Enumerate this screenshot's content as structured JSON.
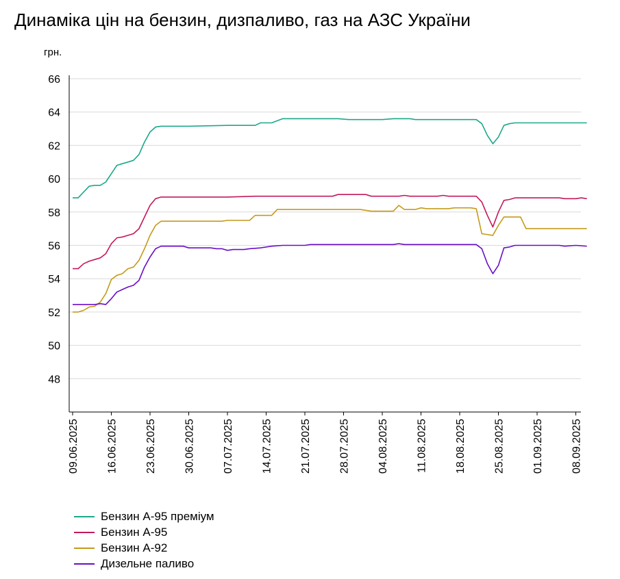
{
  "title": "Динаміка цін на бензин, дизпаливо, газ на АЗС України",
  "chart_data": {
    "type": "line",
    "title": "Динаміка цін на бензин, дизпаливо, газ на АЗС України",
    "ylabel": "грн.",
    "xlabel": "",
    "ylim": [
      46,
      66
    ],
    "yticks": [
      "48",
      "50",
      "52",
      "54",
      "56",
      "58",
      "60",
      "62",
      "64",
      "66"
    ],
    "x_start": "2025-06-09",
    "x_end": "2025-09-10",
    "xticks": [
      "09.06.2025",
      "16.06.2025",
      "23.06.2025",
      "30.06.2025",
      "07.07.2025",
      "14.07.2025",
      "21.07.2025",
      "28.07.2025",
      "04.08.2025",
      "11.08.2025",
      "18.08.2025",
      "25.08.2025",
      "01.09.2025",
      "08.09.2025"
    ],
    "grid": "horizontal",
    "legend_position": "bottom-left",
    "series": [
      {
        "name": "Бензин А-95 преміум",
        "color": "#1aa88a",
        "points": [
          [
            "09.06.2025",
            58.85
          ],
          [
            "10.06.2025",
            58.85
          ],
          [
            "11.06.2025",
            59.2
          ],
          [
            "12.06.2025",
            59.55
          ],
          [
            "13.06.2025",
            59.6
          ],
          [
            "14.06.2025",
            59.6
          ],
          [
            "15.06.2025",
            59.8
          ],
          [
            "16.06.2025",
            60.3
          ],
          [
            "17.06.2025",
            60.8
          ],
          [
            "18.06.2025",
            60.9
          ],
          [
            "19.06.2025",
            61.0
          ],
          [
            "20.06.2025",
            61.1
          ],
          [
            "21.06.2025",
            61.45
          ],
          [
            "22.06.2025",
            62.2
          ],
          [
            "23.06.2025",
            62.8
          ],
          [
            "24.06.2025",
            63.1
          ],
          [
            "25.06.2025",
            63.15
          ],
          [
            "30.06.2025",
            63.15
          ],
          [
            "07.07.2025",
            63.2
          ],
          [
            "12.07.2025",
            63.2
          ],
          [
            "13.07.2025",
            63.35
          ],
          [
            "15.07.2025",
            63.35
          ],
          [
            "17.07.2025",
            63.6
          ],
          [
            "27.07.2025",
            63.6
          ],
          [
            "29.07.2025",
            63.55
          ],
          [
            "04.08.2025",
            63.55
          ],
          [
            "06.08.2025",
            63.6
          ],
          [
            "09.08.2025",
            63.6
          ],
          [
            "10.08.2025",
            63.55
          ],
          [
            "21.08.2025",
            63.55
          ],
          [
            "22.08.2025",
            63.3
          ],
          [
            "23.08.2025",
            62.6
          ],
          [
            "24.08.2025",
            62.1
          ],
          [
            "25.08.2025",
            62.5
          ],
          [
            "26.08.2025",
            63.2
          ],
          [
            "27.08.2025",
            63.3
          ],
          [
            "28.08.2025",
            63.35
          ],
          [
            "10.09.2025",
            63.35
          ]
        ]
      },
      {
        "name": "Бензин А-95",
        "color": "#c2185b",
        "points": [
          [
            "09.06.2025",
            54.6
          ],
          [
            "10.06.2025",
            54.6
          ],
          [
            "11.06.2025",
            54.9
          ],
          [
            "12.06.2025",
            55.05
          ],
          [
            "13.06.2025",
            55.15
          ],
          [
            "14.06.2025",
            55.25
          ],
          [
            "15.06.2025",
            55.5
          ],
          [
            "16.06.2025",
            56.1
          ],
          [
            "17.06.2025",
            56.45
          ],
          [
            "18.06.2025",
            56.5
          ],
          [
            "19.06.2025",
            56.6
          ],
          [
            "20.06.2025",
            56.7
          ],
          [
            "21.06.2025",
            57.0
          ],
          [
            "22.06.2025",
            57.7
          ],
          [
            "23.06.2025",
            58.4
          ],
          [
            "24.06.2025",
            58.8
          ],
          [
            "25.06.2025",
            58.9
          ],
          [
            "07.07.2025",
            58.9
          ],
          [
            "12.07.2025",
            58.95
          ],
          [
            "26.07.2025",
            58.95
          ],
          [
            "27.07.2025",
            59.05
          ],
          [
            "01.08.2025",
            59.05
          ],
          [
            "02.08.2025",
            58.95
          ],
          [
            "07.08.2025",
            58.95
          ],
          [
            "08.08.2025",
            59.0
          ],
          [
            "09.08.2025",
            58.95
          ],
          [
            "14.08.2025",
            58.95
          ],
          [
            "15.08.2025",
            59.0
          ],
          [
            "16.08.2025",
            58.95
          ],
          [
            "21.08.2025",
            58.95
          ],
          [
            "22.08.2025",
            58.6
          ],
          [
            "23.08.2025",
            57.8
          ],
          [
            "24.08.2025",
            57.1
          ],
          [
            "25.08.2025",
            58.0
          ],
          [
            "26.08.2025",
            58.7
          ],
          [
            "27.08.2025",
            58.75
          ],
          [
            "28.08.2025",
            58.85
          ],
          [
            "05.09.2025",
            58.85
          ],
          [
            "06.09.2025",
            58.8
          ],
          [
            "08.09.2025",
            58.8
          ],
          [
            "09.09.2025",
            58.85
          ],
          [
            "10.09.2025",
            58.8
          ]
        ]
      },
      {
        "name": "Бензин А-92",
        "color": "#c49a1a",
        "points": [
          [
            "09.06.2025",
            52.0
          ],
          [
            "10.06.2025",
            52.0
          ],
          [
            "11.06.2025",
            52.1
          ],
          [
            "12.06.2025",
            52.3
          ],
          [
            "13.06.2025",
            52.35
          ],
          [
            "14.06.2025",
            52.6
          ],
          [
            "15.06.2025",
            53.1
          ],
          [
            "16.06.2025",
            53.95
          ],
          [
            "17.06.2025",
            54.2
          ],
          [
            "18.06.2025",
            54.3
          ],
          [
            "19.06.2025",
            54.6
          ],
          [
            "20.06.2025",
            54.7
          ],
          [
            "21.06.2025",
            55.1
          ],
          [
            "22.06.2025",
            55.8
          ],
          [
            "23.06.2025",
            56.6
          ],
          [
            "24.06.2025",
            57.2
          ],
          [
            "25.06.2025",
            57.45
          ],
          [
            "06.07.2025",
            57.45
          ],
          [
            "07.07.2025",
            57.5
          ],
          [
            "11.07.2025",
            57.5
          ],
          [
            "12.07.2025",
            57.8
          ],
          [
            "15.07.2025",
            57.8
          ],
          [
            "16.07.2025",
            58.15
          ],
          [
            "31.07.2025",
            58.15
          ],
          [
            "02.08.2025",
            58.05
          ],
          [
            "06.08.2025",
            58.05
          ],
          [
            "07.08.2025",
            58.4
          ],
          [
            "08.08.2025",
            58.15
          ],
          [
            "10.08.2025",
            58.15
          ],
          [
            "11.08.2025",
            58.25
          ],
          [
            "12.08.2025",
            58.2
          ],
          [
            "16.08.2025",
            58.2
          ],
          [
            "17.08.2025",
            58.25
          ],
          [
            "20.08.2025",
            58.25
          ],
          [
            "21.08.2025",
            58.2
          ],
          [
            "22.08.2025",
            56.7
          ],
          [
            "24.08.2025",
            56.6
          ],
          [
            "25.08.2025",
            57.2
          ],
          [
            "26.08.2025",
            57.7
          ],
          [
            "29.08.2025",
            57.7
          ],
          [
            "30.08.2025",
            57.0
          ],
          [
            "10.09.2025",
            57.0
          ]
        ]
      },
      {
        "name": "Дизельне паливо",
        "color": "#6a0dc6",
        "points": [
          [
            "09.06.2025",
            52.45
          ],
          [
            "13.06.2025",
            52.45
          ],
          [
            "14.06.2025",
            52.5
          ],
          [
            "15.06.2025",
            52.45
          ],
          [
            "16.06.2025",
            52.8
          ],
          [
            "17.06.2025",
            53.2
          ],
          [
            "18.06.2025",
            53.35
          ],
          [
            "19.06.2025",
            53.5
          ],
          [
            "20.06.2025",
            53.6
          ],
          [
            "21.06.2025",
            53.9
          ],
          [
            "22.06.2025",
            54.7
          ],
          [
            "23.06.2025",
            55.3
          ],
          [
            "24.06.2025",
            55.8
          ],
          [
            "25.06.2025",
            55.95
          ],
          [
            "29.06.2025",
            55.95
          ],
          [
            "30.06.2025",
            55.85
          ],
          [
            "04.07.2025",
            55.85
          ],
          [
            "05.07.2025",
            55.8
          ],
          [
            "06.07.2025",
            55.8
          ],
          [
            "07.07.2025",
            55.7
          ],
          [
            "08.07.2025",
            55.75
          ],
          [
            "10.07.2025",
            55.75
          ],
          [
            "11.07.2025",
            55.8
          ],
          [
            "13.07.2025",
            55.85
          ],
          [
            "15.07.2025",
            55.95
          ],
          [
            "17.07.2025",
            56.0
          ],
          [
            "21.07.2025",
            56.0
          ],
          [
            "22.07.2025",
            56.05
          ],
          [
            "06.08.2025",
            56.05
          ],
          [
            "07.08.2025",
            56.1
          ],
          [
            "08.08.2025",
            56.05
          ],
          [
            "21.08.2025",
            56.05
          ],
          [
            "22.08.2025",
            55.8
          ],
          [
            "23.08.2025",
            54.9
          ],
          [
            "24.08.2025",
            54.3
          ],
          [
            "25.08.2025",
            54.8
          ],
          [
            "26.08.2025",
            55.85
          ],
          [
            "27.08.2025",
            55.9
          ],
          [
            "28.08.2025",
            56.0
          ],
          [
            "05.09.2025",
            56.0
          ],
          [
            "06.09.2025",
            55.95
          ],
          [
            "08.09.2025",
            56.0
          ],
          [
            "10.09.2025",
            55.95
          ]
        ]
      }
    ]
  }
}
